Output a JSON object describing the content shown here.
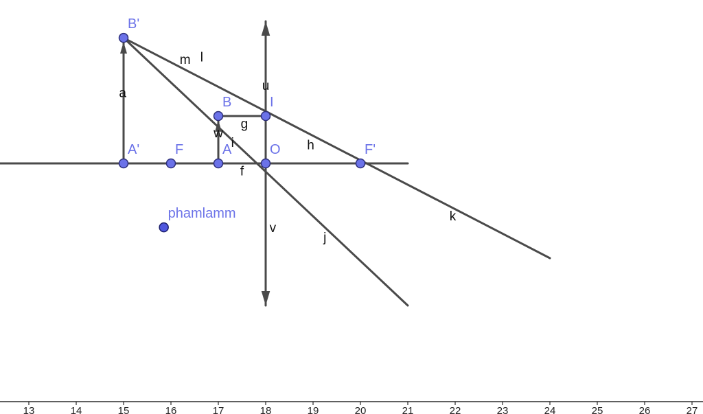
{
  "diagram": {
    "points": [
      {
        "id": "Bp",
        "label": "B'",
        "x": 15,
        "y": 2.65
      },
      {
        "id": "B",
        "label": "B",
        "x": 17,
        "y": 1
      },
      {
        "id": "I",
        "label": "I",
        "x": 18,
        "y": 1
      },
      {
        "id": "Ap",
        "label": "A'",
        "x": 15,
        "y": 0
      },
      {
        "id": "F",
        "label": "F",
        "x": 16,
        "y": 0
      },
      {
        "id": "A",
        "label": "A",
        "x": 17,
        "y": 0
      },
      {
        "id": "O",
        "label": "O",
        "x": 18,
        "y": 0
      },
      {
        "id": "Fp",
        "label": "F'",
        "x": 20,
        "y": 0
      },
      {
        "id": "P",
        "label": "phamlamm",
        "x": 15.85,
        "y": -1.35
      }
    ],
    "segments": [
      {
        "name": "axis",
        "from": [
          12.0,
          0
        ],
        "to": [
          21.0,
          0
        ]
      },
      {
        "name": "a",
        "from": [
          15,
          0
        ],
        "to": [
          15,
          2.65
        ]
      },
      {
        "name": "w",
        "from": [
          17,
          0
        ],
        "to": [
          17,
          1
        ]
      },
      {
        "name": "g",
        "from": [
          17,
          1
        ],
        "to": [
          18,
          1
        ]
      },
      {
        "name": "lens",
        "from": [
          18,
          -3.0
        ],
        "to": [
          18,
          3.0
        ]
      },
      {
        "name": "ray-k",
        "from": [
          15,
          2.65
        ],
        "to": [
          24,
          -2.0
        ]
      },
      {
        "name": "ray-j",
        "from": [
          15,
          2.65
        ],
        "to": [
          21,
          -3.0
        ]
      }
    ],
    "segment_labels": [
      {
        "text": "m",
        "x": 16.3,
        "y": 2.1
      },
      {
        "text": "l",
        "x": 16.65,
        "y": 2.15
      },
      {
        "text": "a",
        "x": 14.98,
        "y": 1.4
      },
      {
        "text": "u",
        "x": 18.0,
        "y": 1.55
      },
      {
        "text": "g",
        "x": 17.55,
        "y": 0.75
      },
      {
        "text": "w",
        "x": 17.0,
        "y": 0.55
      },
      {
        "text": "i",
        "x": 17.3,
        "y": 0.35
      },
      {
        "text": "h",
        "x": 18.95,
        "y": 0.3
      },
      {
        "text": "f",
        "x": 17.5,
        "y": -0.25
      },
      {
        "text": "k",
        "x": 21.95,
        "y": -1.2
      },
      {
        "text": "v",
        "x": 18.15,
        "y": -1.45
      },
      {
        "text": "j",
        "x": 19.25,
        "y": -1.65
      }
    ]
  },
  "x_axis": {
    "ticks": [
      13,
      14,
      15,
      16,
      17,
      18,
      19,
      20,
      21,
      22,
      23,
      24,
      25,
      26,
      27
    ]
  }
}
